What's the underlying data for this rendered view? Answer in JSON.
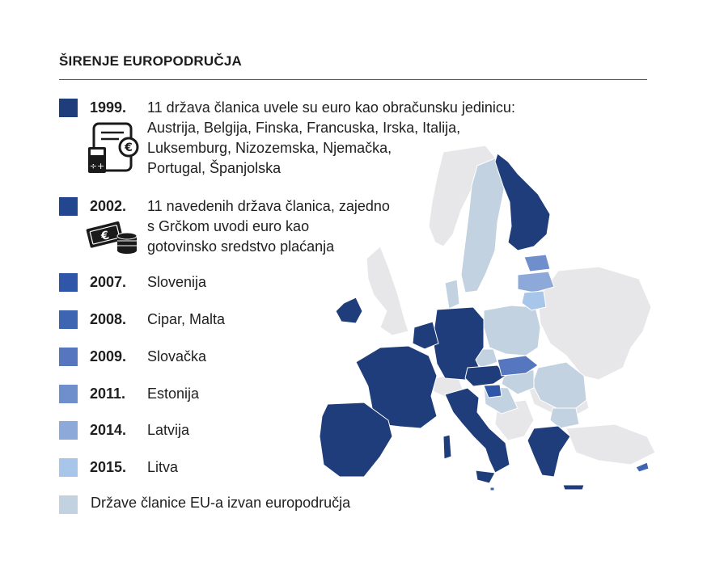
{
  "title": "ŠIRENJE EUROPODRUČJA",
  "legend": [
    {
      "year": "1999.",
      "color": "#1f3d7a",
      "lines": [
        "11 država članica uvele su euro kao obračunsku jedinicu:",
        "Austrija, Belgija, Finska, Francuska, Irska, Italija,",
        "Luksemburg, Nizozemska, Njemačka,",
        "Portugal, Španjolska"
      ]
    },
    {
      "year": "2002.",
      "color": "#22478f",
      "lines": [
        "11 navedenih država članica, zajedno",
        "s Grčkom uvodi euro kao",
        "gotovinsko sredstvo plaćanja"
      ]
    },
    {
      "year": "2007.",
      "color": "#2f56a8",
      "lines": [
        "Slovenija"
      ]
    },
    {
      "year": "2008.",
      "color": "#3e65b2",
      "lines": [
        "Cipar, Malta"
      ]
    },
    {
      "year": "2009.",
      "color": "#5677c0",
      "lines": [
        "Slovačka"
      ]
    },
    {
      "year": "2011.",
      "color": "#6e8fcc",
      "lines": [
        "Estonija"
      ]
    },
    {
      "year": "2014.",
      "color": "#8ca9da",
      "lines": [
        "Latvija"
      ]
    },
    {
      "year": "2015.",
      "color": "#a8c5ea",
      "lines": [
        "Litva"
      ]
    }
  ],
  "non_member": {
    "label": "Države članice EU-a izvan europodručja",
    "color": "#c3d2e1"
  },
  "map_colors": {
    "euro_1999": "#1f3d7a",
    "slovenia": "#2f56a8",
    "cyprus_malta": "#3e65b2",
    "slovakia": "#5677c0",
    "estonia": "#6e8fcc",
    "latvia": "#8ca9da",
    "lithuania": "#a8c5ea",
    "eu_non_euro": "#c3d2e1",
    "non_eu": "#e7e7e9"
  },
  "icons": {
    "row1": "calculator-document-euro-icon",
    "row2": "euro-banknotes-coins-icon"
  }
}
